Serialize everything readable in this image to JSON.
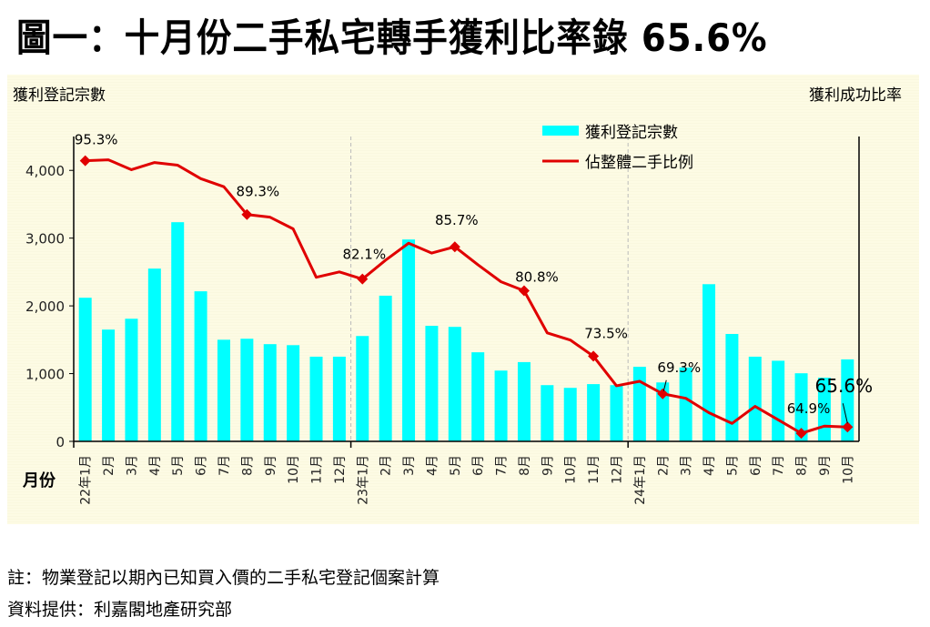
{
  "title": "圖一：十月份二手私宅轉手獲利比率錄 65.6%",
  "chart_data": {
    "type": "bar+line",
    "title": "圖一：十月份二手私宅轉手獲利比率錄 65.6%",
    "ylabel_left": "獲利登記宗數",
    "ylabel_right": "獲利成功比率",
    "xlabel": "月份",
    "ylim_left": [
      0,
      4500
    ],
    "yticks_left": [
      "0",
      "1,000",
      "2,000",
      "3,000",
      "4,000"
    ],
    "ylim_right": [
      64,
      98
    ],
    "categories": [
      "22年1月",
      "2月",
      "3月",
      "4月",
      "5月",
      "6月",
      "7月",
      "8月",
      "9月",
      "10月",
      "11月",
      "12月",
      "23年1月",
      "2月",
      "3月",
      "4月",
      "5月",
      "6月",
      "7月",
      "8月",
      "9月",
      "10月",
      "11月",
      "12月",
      "24年1月",
      "2月",
      "3月",
      "4月",
      "5月",
      "6月",
      "7月",
      "8月",
      "9月",
      "10月"
    ],
    "series": [
      {
        "name": "獲利登記宗數",
        "type": "bar",
        "color": "#00ffff",
        "values": [
          2120,
          1650,
          1810,
          2550,
          3235,
          2215,
          1500,
          1515,
          1435,
          1420,
          1250,
          1250,
          1555,
          2150,
          2980,
          1705,
          1690,
          1315,
          1045,
          1170,
          830,
          790,
          845,
          830,
          1100,
          870,
          1090,
          2320,
          1585,
          1250,
          1190,
          1005,
          940,
          1210
        ]
      },
      {
        "name": "佔整體二手比例",
        "type": "line",
        "color": "#e00000",
        "unit": "%",
        "values": [
          95.3,
          95.4,
          94.3,
          95.1,
          94.8,
          93.3,
          92.4,
          89.3,
          89.0,
          87.7,
          82.3,
          82.9,
          82.1,
          84.2,
          86.1,
          85.0,
          85.7,
          83.7,
          81.8,
          80.8,
          76.1,
          75.3,
          73.5,
          70.2,
          70.7,
          69.3,
          68.8,
          67.2,
          66.0,
          67.9,
          66.4,
          64.9,
          65.7,
          65.6
        ]
      }
    ],
    "annotations": [
      {
        "index": 0,
        "text": "95.3%"
      },
      {
        "index": 7,
        "text": "89.3%"
      },
      {
        "index": 12,
        "text": "82.1%"
      },
      {
        "index": 16,
        "text": "85.7%"
      },
      {
        "index": 19,
        "text": "80.8%"
      },
      {
        "index": 22,
        "text": "73.5%"
      },
      {
        "index": 25,
        "text": "69.3%"
      },
      {
        "index": 31,
        "text": "64.9%"
      },
      {
        "index": 33,
        "text": "65.6%"
      }
    ],
    "legend_position": "top-center",
    "grid": false
  },
  "footer": {
    "note": "註：物業登記以期內已知買入價的二手私宅登記個案計算",
    "source": "資料提供：利嘉閣地產研究部"
  }
}
